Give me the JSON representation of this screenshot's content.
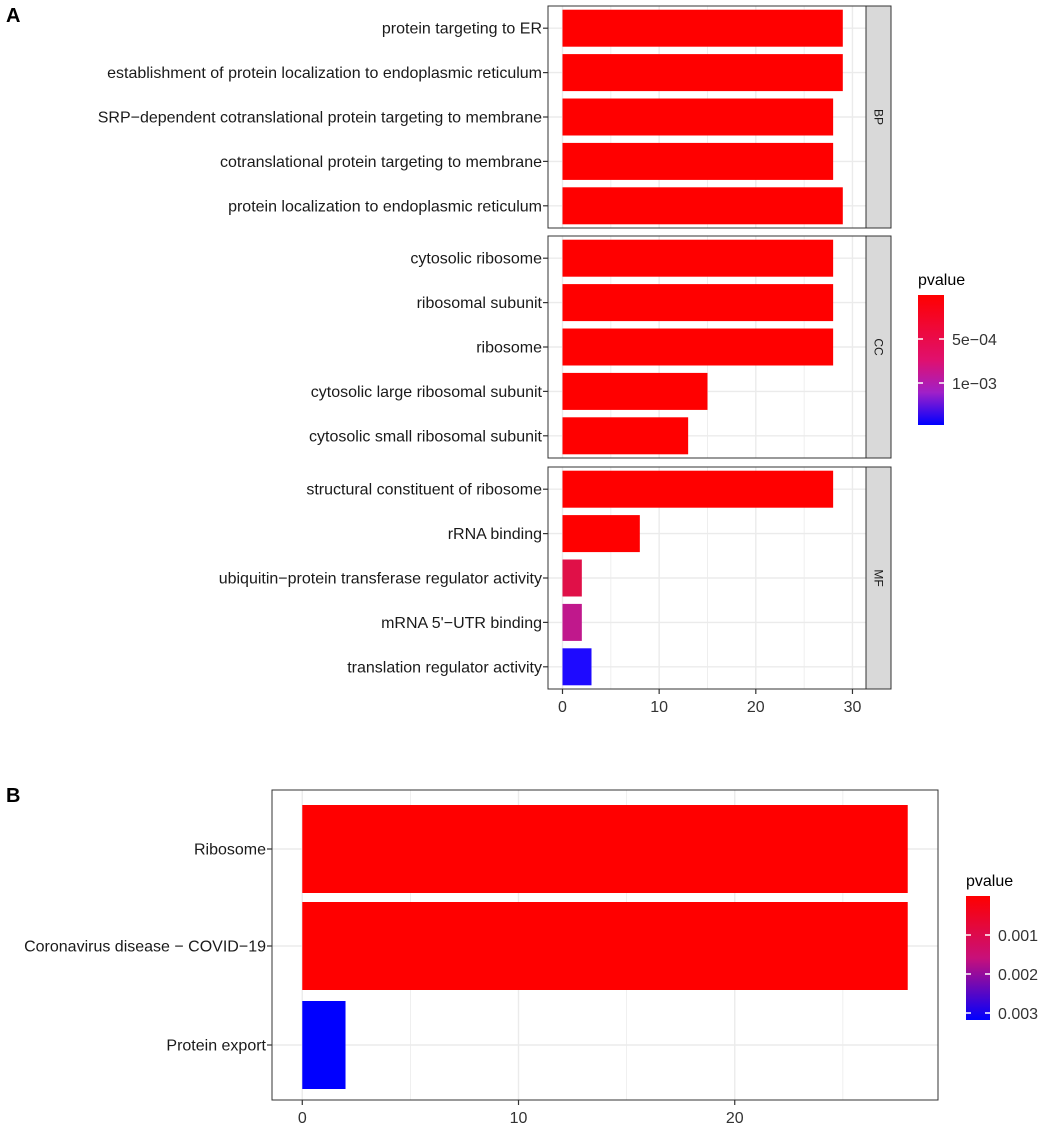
{
  "chart_data": [
    {
      "panel_label": "A",
      "type": "bar",
      "orientation": "horizontal",
      "facets": [
        {
          "strip_label": "BP",
          "bars": [
            {
              "term": "protein targeting to ER",
              "count": 29,
              "color": "#FF0000"
            },
            {
              "term": "establishment of protein localization to endoplasmic reticulum",
              "count": 29,
              "color": "#FF0000"
            },
            {
              "term": "SRP−dependent cotranslational protein targeting to membrane",
              "count": 28,
              "color": "#FF0000"
            },
            {
              "term": "cotranslational protein targeting to membrane",
              "count": 28,
              "color": "#FF0000"
            },
            {
              "term": "protein localization to endoplasmic reticulum",
              "count": 29,
              "color": "#FF0000"
            }
          ]
        },
        {
          "strip_label": "CC",
          "bars": [
            {
              "term": "cytosolic ribosome",
              "count": 28,
              "color": "#FF0000"
            },
            {
              "term": "ribosomal subunit",
              "count": 28,
              "color": "#FF0000"
            },
            {
              "term": "ribosome",
              "count": 28,
              "color": "#FF0000"
            },
            {
              "term": "cytosolic large ribosomal subunit",
              "count": 15,
              "color": "#FF0000"
            },
            {
              "term": "cytosolic small ribosomal subunit",
              "count": 13,
              "color": "#FF0000"
            }
          ]
        },
        {
          "strip_label": "MF",
          "bars": [
            {
              "term": "structural constituent of ribosome",
              "count": 28,
              "color": "#FF0000"
            },
            {
              "term": "rRNA binding",
              "count": 8,
              "color": "#FF0000"
            },
            {
              "term": "ubiquitin−protein transferase regulator activity",
              "count": 2,
              "color": "#E01048"
            },
            {
              "term": "mRNA 5'−UTR binding",
              "count": 2,
              "color": "#C0188C"
            },
            {
              "term": "translation regulator activity",
              "count": 3,
              "color": "#1E0AFF"
            }
          ]
        }
      ],
      "x_ticks": [
        0,
        10,
        20,
        30
      ],
      "xlim": [
        -1.5,
        31.4
      ],
      "legend": {
        "title": "pvalue",
        "tick_labels": [
          "5e−04",
          "1e−03"
        ],
        "low_color": "#FF0000",
        "high_color": "#0000FF"
      }
    },
    {
      "panel_label": "B",
      "type": "bar",
      "orientation": "horizontal",
      "bars": [
        {
          "term": "Ribosome",
          "count": 28,
          "color": "#FF0000"
        },
        {
          "term": "Coronavirus disease − COVID−19",
          "count": 28,
          "color": "#FF0000"
        },
        {
          "term": "Protein export",
          "count": 2,
          "color": "#0000FF"
        }
      ],
      "x_ticks": [
        0,
        10,
        20
      ],
      "xlim": [
        -1.4,
        29.4
      ],
      "legend": {
        "title": "pvalue",
        "tick_labels": [
          "0.001",
          "0.002",
          "0.003"
        ],
        "low_color": "#FF0000",
        "high_color": "#0000FF"
      }
    }
  ]
}
